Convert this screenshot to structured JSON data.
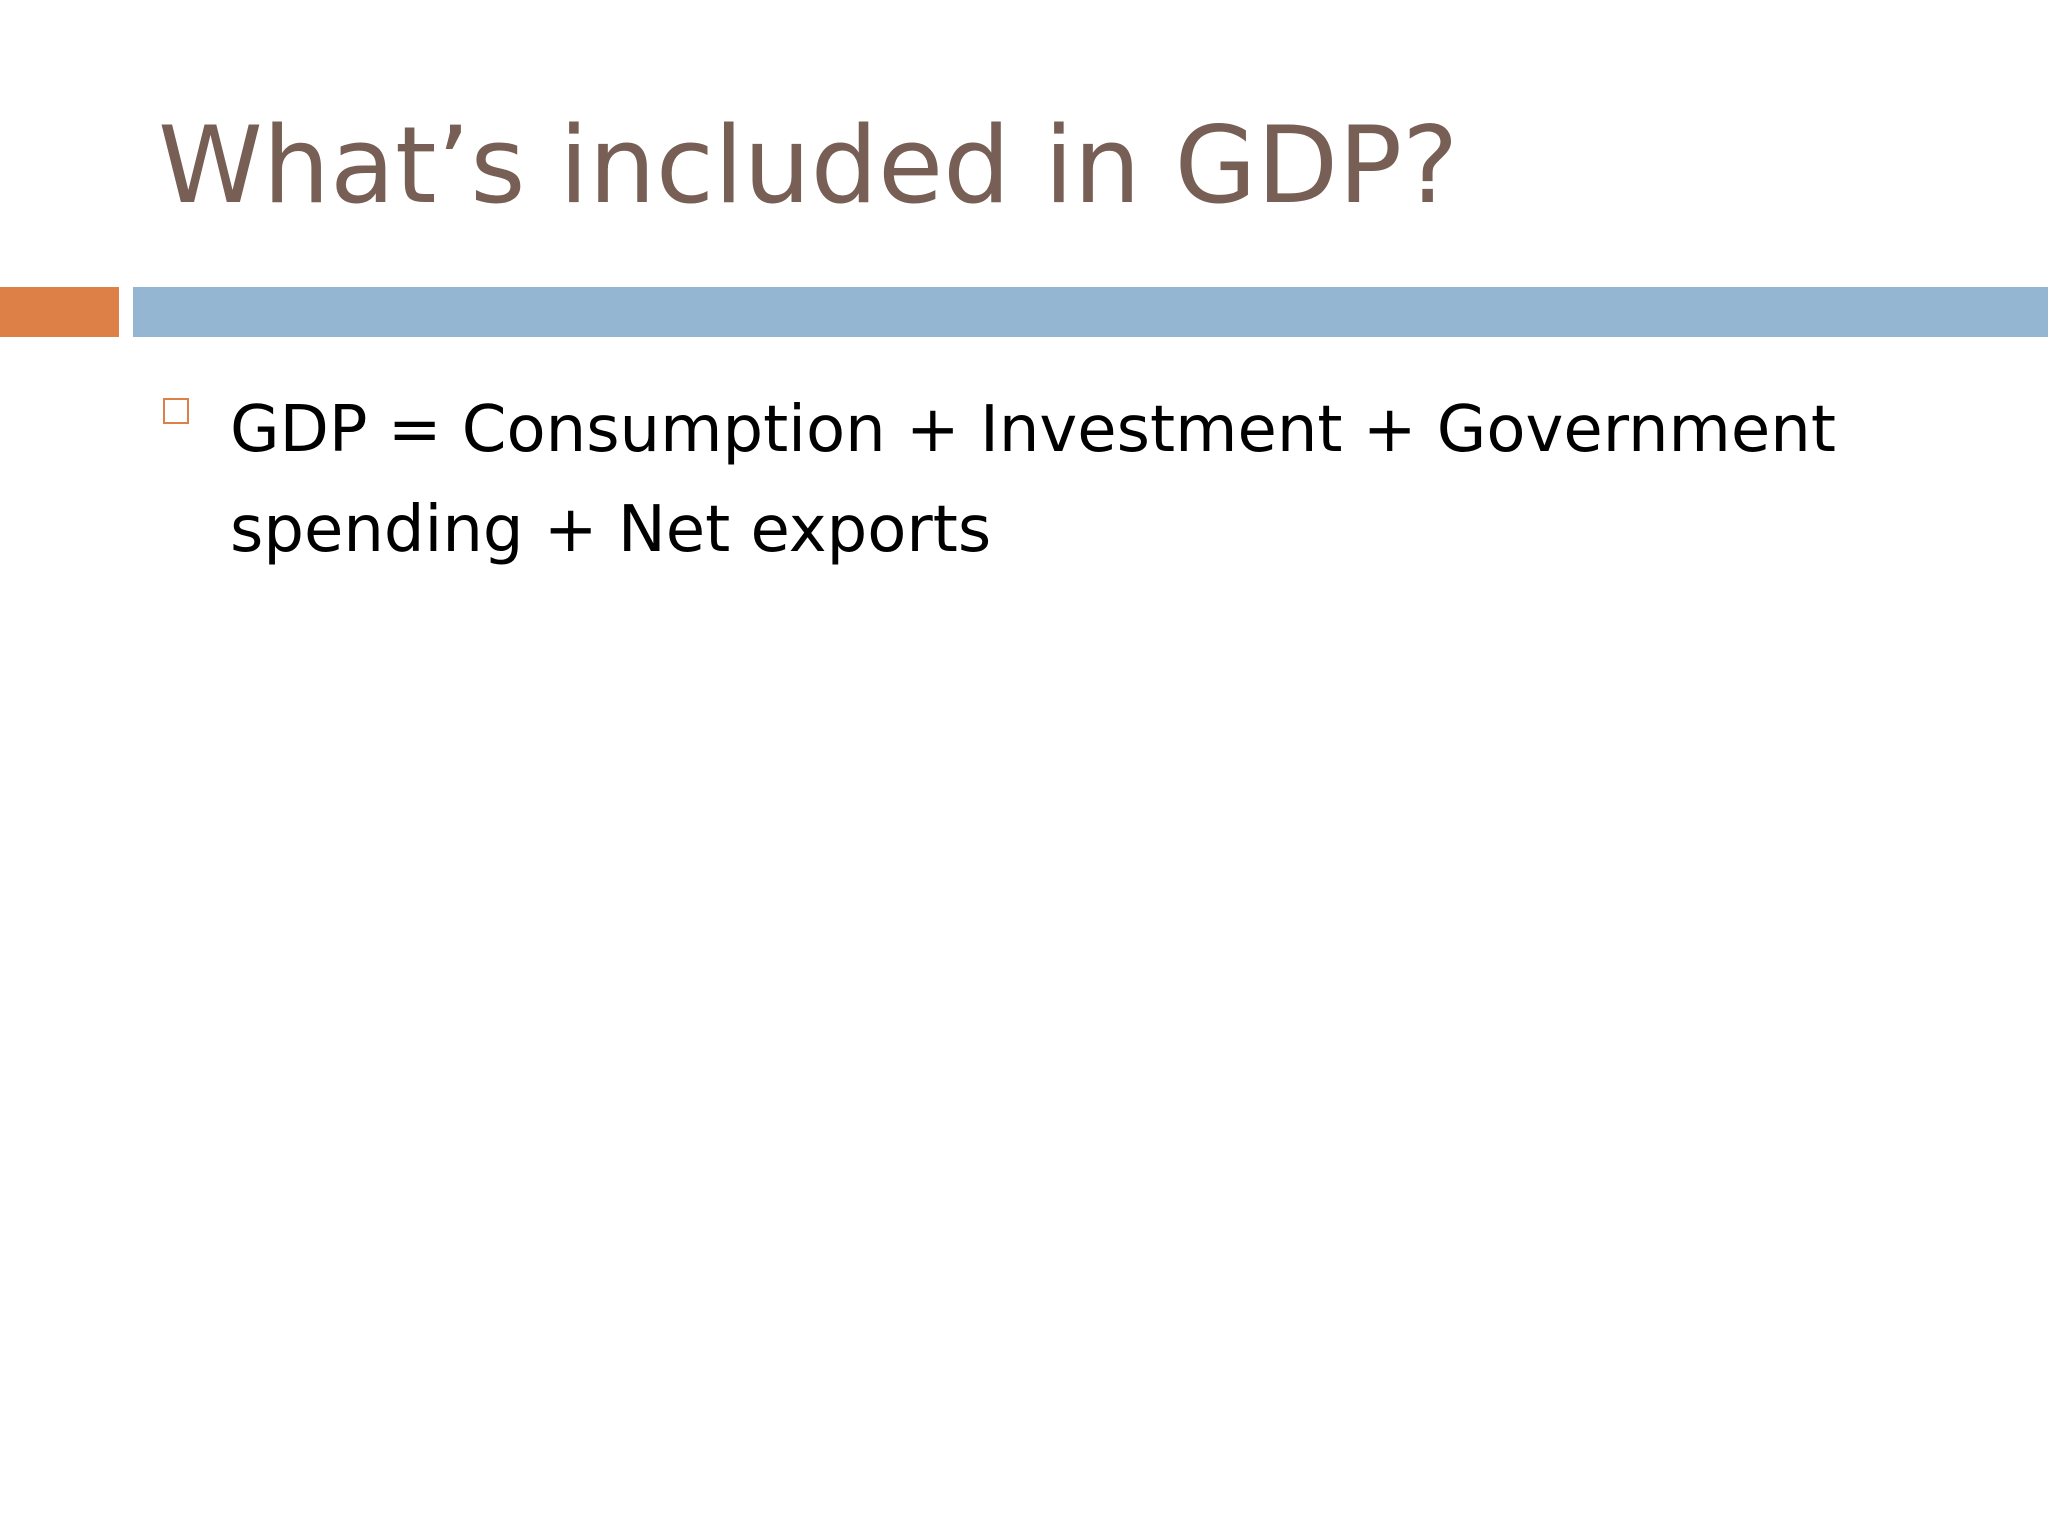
{
  "slide": {
    "title": "What’s included in GDP?",
    "bullets": [
      {
        "text": "GDP = Consumption + Investment + Government spending + Net exports"
      }
    ]
  },
  "colors": {
    "title": "#775f55",
    "accent": "#dd8047",
    "rule": "#94b6d2",
    "body_text": "#000000",
    "background": "#ffffff"
  },
  "icons": {
    "bullet": "hollow-square-bullet-icon"
  }
}
